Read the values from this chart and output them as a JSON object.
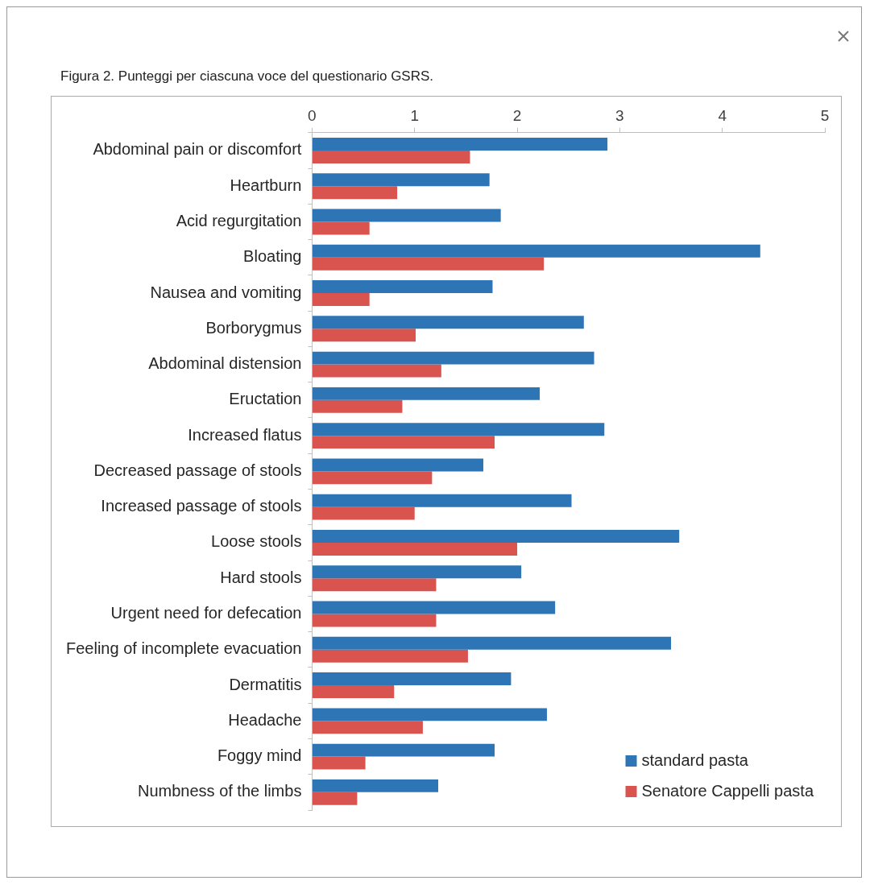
{
  "chart_data": {
    "type": "bar",
    "orientation": "horizontal",
    "title": "Figura 2. Punteggi per ciascuna voce del questionario GSRS.",
    "categories": [
      "Abdominal pain or discomfort",
      "Heartburn",
      "Acid regurgitation",
      "Bloating",
      "Nausea and vomiting",
      "Borborygmus",
      "Abdominal distension",
      "Eructation",
      "Increased flatus",
      "Decreased passage of stools",
      "Increased passage of stools",
      "Loose stools",
      "Hard stools",
      "Urgent need for defecation",
      "Feeling of incomplete evacuation",
      "Dermatitis",
      "Headache",
      "Foggy mind",
      "Numbness of the limbs"
    ],
    "series": [
      {
        "name": "standard pasta",
        "color": "#2e75b6",
        "values": [
          2.88,
          1.73,
          1.84,
          4.37,
          1.76,
          2.65,
          2.75,
          2.22,
          2.85,
          1.67,
          2.53,
          3.58,
          2.04,
          2.37,
          3.5,
          1.94,
          2.29,
          1.78,
          1.23
        ]
      },
      {
        "name": "Senatore Cappelli pasta",
        "color": "#d9534f",
        "values": [
          1.54,
          0.83,
          0.56,
          2.26,
          0.56,
          1.01,
          1.26,
          0.88,
          1.78,
          1.17,
          1.0,
          2.0,
          1.21,
          1.21,
          1.52,
          0.8,
          1.08,
          0.52,
          0.44
        ]
      }
    ],
    "xlim": [
      0,
      5
    ],
    "xticks": [
      0,
      1,
      2,
      3,
      4,
      5
    ],
    "grid": false,
    "legend": "bottom right"
  }
}
